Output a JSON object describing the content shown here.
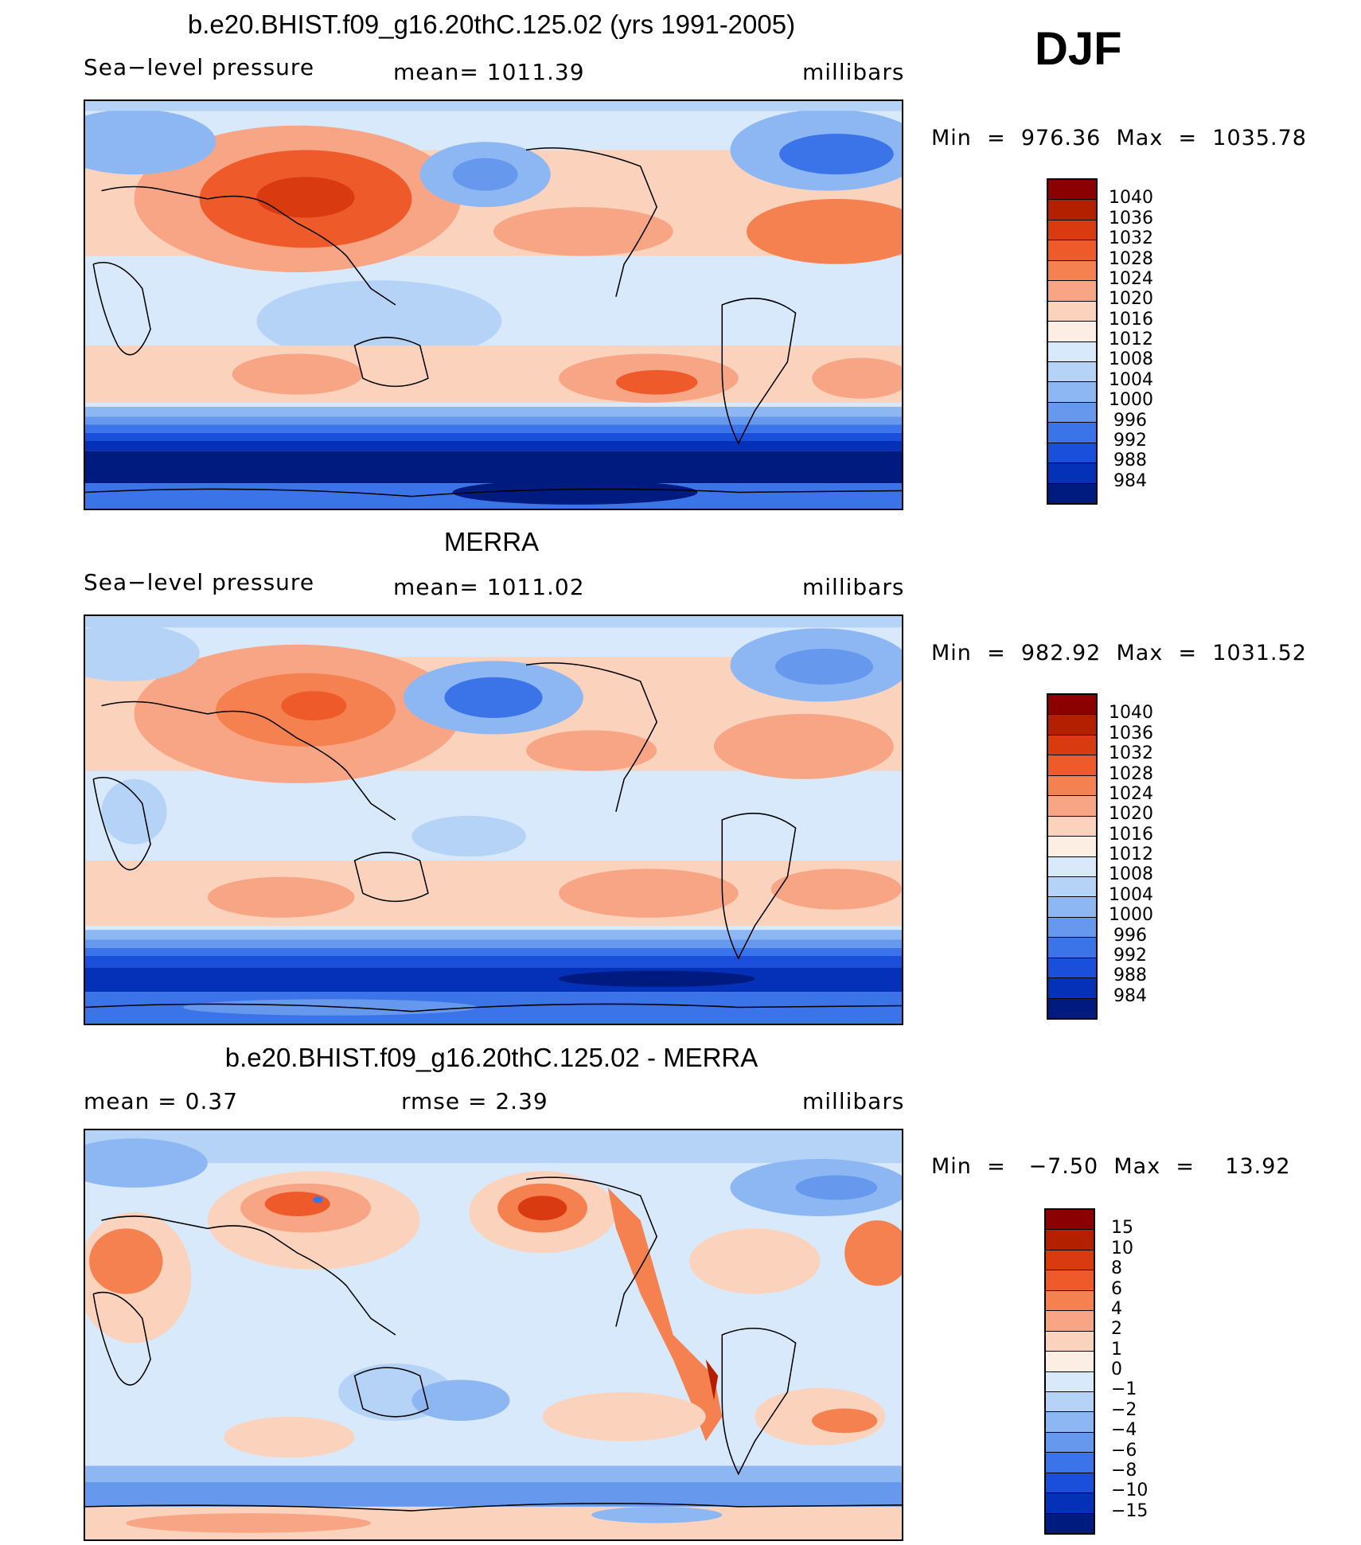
{
  "season": "DJF",
  "panels": [
    {
      "title": "b.e20.BHIST.f09_g16.20thC.125.02 (yrs 1991-2005)",
      "left_label": "Sea−level pressure",
      "center_label": "mean=  1011.39",
      "units": "millibars",
      "minmax": "Min  =  976.36  Max  =  1035.78"
    },
    {
      "title": "MERRA",
      "left_label": "Sea−level pressure",
      "center_label": "mean=  1011.02",
      "units": "millibars",
      "minmax": "Min  =  982.92  Max  =  1031.52"
    },
    {
      "title": "b.e20.BHIST.f09_g16.20thC.125.02 - MERRA",
      "left_label": "mean  =     0.37",
      "center_label": "rmse  =     2.39",
      "units": "millibars",
      "minmax": "Min  =   −7.50  Max  =    13.92"
    }
  ],
  "chart_data": [
    {
      "type": "heatmap",
      "title": "b.e20.BHIST.f09_g16.20thC.125.02 (yrs 1991-2005)",
      "variable": "Sea-level pressure",
      "units": "millibars",
      "mean": 1011.39,
      "min": 976.36,
      "max": 1035.78,
      "levels": [
        "1040",
        "1036",
        "1032",
        "1028",
        "1024",
        "1020",
        "1016",
        "1012",
        "1008",
        "1004",
        "1000",
        "996",
        "992",
        "988",
        "984"
      ],
      "colors": [
        "#8b0000",
        "#b22000",
        "#d93a10",
        "#ef5a2a",
        "#f58050",
        "#f7a585",
        "#fbd3bd",
        "#fdeee3",
        "#d7e9fb",
        "#b5d3f6",
        "#8db7f2",
        "#6699ee",
        "#3b73e8",
        "#1a4fdc",
        "#0530b8",
        "#001b80"
      ]
    },
    {
      "type": "heatmap",
      "title": "MERRA",
      "variable": "Sea-level pressure",
      "units": "millibars",
      "mean": 1011.02,
      "min": 982.92,
      "max": 1031.52,
      "levels": [
        "1040",
        "1036",
        "1032",
        "1028",
        "1024",
        "1020",
        "1016",
        "1012",
        "1008",
        "1004",
        "1000",
        "996",
        "992",
        "988",
        "984"
      ],
      "colors": [
        "#8b0000",
        "#b22000",
        "#d93a10",
        "#ef5a2a",
        "#f58050",
        "#f7a585",
        "#fbd3bd",
        "#fdeee3",
        "#d7e9fb",
        "#b5d3f6",
        "#8db7f2",
        "#6699ee",
        "#3b73e8",
        "#1a4fdc",
        "#0530b8",
        "#001b80"
      ]
    },
    {
      "type": "heatmap",
      "title": "b.e20.BHIST.f09_g16.20thC.125.02 - MERRA",
      "units": "millibars",
      "mean": 0.37,
      "rmse": 2.39,
      "min": -7.5,
      "max": 13.92,
      "levels": [
        "15",
        "10",
        "8",
        "6",
        "4",
        "2",
        "1",
        "0",
        "−1",
        "−2",
        "−4",
        "−6",
        "−8",
        "−10",
        "−15"
      ],
      "colors": [
        "#8b0000",
        "#b22000",
        "#d93a10",
        "#ef5a2a",
        "#f58050",
        "#f7a585",
        "#fbd3bd",
        "#fdeee3",
        "#d7e9fb",
        "#b5d3f6",
        "#8db7f2",
        "#6699ee",
        "#3b73e8",
        "#1a4fdc",
        "#0530b8",
        "#001b80"
      ]
    }
  ]
}
